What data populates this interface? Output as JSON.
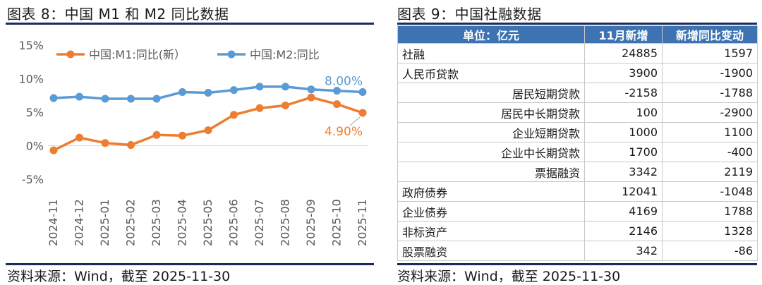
{
  "left": {
    "title": "图表 8：中国 M1 和 M2 同比数据",
    "source": "资料来源：Wind，截至 2025-11-30"
  },
  "right": {
    "title": "图表 9：中国社融数据",
    "source": "资料来源：Wind，截至 2025-11-30"
  },
  "chart_data": {
    "type": "line",
    "x": [
      "2024-11",
      "2024-12",
      "2025-01",
      "2025-02",
      "2025-03",
      "2025-04",
      "2025-05",
      "2025-06",
      "2025-07",
      "2025-08",
      "2025-09",
      "2025-10",
      "2025-11"
    ],
    "series": [
      {
        "name": "中国:M1:同比(新）",
        "color": "#ed7d31",
        "values": [
          -0.7,
          1.2,
          0.4,
          0.1,
          1.6,
          1.5,
          2.3,
          4.6,
          5.6,
          6.0,
          7.2,
          6.2,
          4.9
        ],
        "end_label": "4.90%"
      },
      {
        "name": "中国:M2:同比",
        "color": "#5b9bd5",
        "values": [
          7.1,
          7.3,
          7.0,
          7.0,
          7.0,
          8.0,
          7.9,
          8.3,
          8.8,
          8.8,
          8.4,
          8.2,
          8.0
        ],
        "end_label": "8.00%"
      }
    ],
    "ylim": [
      -5,
      15
    ],
    "yticks": [
      -5,
      0,
      5,
      10,
      15
    ],
    "ytick_labels": [
      "-5%",
      "0%",
      "5%",
      "10%",
      "15%"
    ],
    "grid": false,
    "legend": "top"
  },
  "table": {
    "headers": [
      "单位：亿元",
      "11月新增",
      "新增同比变动"
    ],
    "rows": [
      {
        "label": "社融",
        "indent": false,
        "v1": "24885",
        "v2": "1597"
      },
      {
        "label": "人民币贷款",
        "indent": false,
        "v1": "3900",
        "v2": "-1900"
      },
      {
        "label": "居民短期贷款",
        "indent": true,
        "v1": "-2158",
        "v2": "-1788"
      },
      {
        "label": "居民中长期贷款",
        "indent": true,
        "v1": "100",
        "v2": "-2900"
      },
      {
        "label": "企业短期贷款",
        "indent": true,
        "v1": "1000",
        "v2": "1100"
      },
      {
        "label": "企业中长期贷款",
        "indent": true,
        "v1": "1700",
        "v2": "-400"
      },
      {
        "label": "票据融资",
        "indent": true,
        "v1": "3342",
        "v2": "2119"
      },
      {
        "label": "政府债券",
        "indent": false,
        "v1": "12041",
        "v2": "-1048"
      },
      {
        "label": "企业债券",
        "indent": false,
        "v1": "4169",
        "v2": "1788"
      },
      {
        "label": "非标资产",
        "indent": false,
        "v1": "2146",
        "v2": "1328"
      },
      {
        "label": "股票融资",
        "indent": false,
        "v1": "342",
        "v2": "-86"
      }
    ]
  }
}
